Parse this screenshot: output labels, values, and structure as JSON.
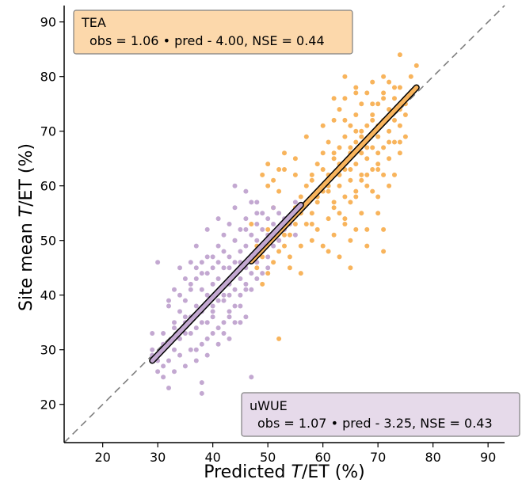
{
  "chart_data": {
    "type": "scatter",
    "xlabel": "Predicted T/ET (%)",
    "ylabel": "Site mean T/ET (%)",
    "xlabel_parts": [
      "Predicted ",
      "T",
      "/ET (%)"
    ],
    "ylabel_parts": [
      "Site mean ",
      "T",
      "/ET (%)"
    ],
    "xlim": [
      13,
      93
    ],
    "ylim": [
      13,
      93
    ],
    "x_ticks": [
      20,
      30,
      40,
      50,
      60,
      70,
      80,
      90
    ],
    "y_ticks": [
      20,
      30,
      40,
      50,
      60,
      70,
      80,
      90
    ],
    "one_to_one_line": true,
    "series": [
      {
        "name": "TEA",
        "color": "#f8b45c",
        "fit_color": "#f8b45c",
        "fit": {
          "x": [
            47,
            77
          ],
          "y": [
            46.2,
            78.0
          ]
        },
        "stats": "obs = 1.06 • pred - 4.00, NSE = 0.44",
        "points": [
          [
            47,
            53
          ],
          [
            48,
            49
          ],
          [
            49,
            47
          ],
          [
            50,
            60
          ],
          [
            50,
            52
          ],
          [
            51,
            56
          ],
          [
            51,
            61
          ],
          [
            52,
            63
          ],
          [
            52,
            50
          ],
          [
            53,
            66
          ],
          [
            53,
            51
          ],
          [
            54,
            54
          ],
          [
            54,
            45
          ],
          [
            55,
            62
          ],
          [
            55,
            56
          ],
          [
            56,
            49
          ],
          [
            56,
            58
          ],
          [
            57,
            53
          ],
          [
            57,
            60
          ],
          [
            58,
            55
          ],
          [
            58,
            62
          ],
          [
            59,
            57
          ],
          [
            59,
            64
          ],
          [
            59,
            52
          ],
          [
            60,
            49
          ],
          [
            60,
            66
          ],
          [
            60,
            59
          ],
          [
            61,
            62
          ],
          [
            61,
            54
          ],
          [
            61,
            68
          ],
          [
            62,
            57
          ],
          [
            62,
            65
          ],
          [
            62,
            72
          ],
          [
            62,
            51
          ],
          [
            63,
            60
          ],
          [
            63,
            67
          ],
          [
            63,
            55
          ],
          [
            63,
            74
          ],
          [
            64,
            63
          ],
          [
            64,
            58
          ],
          [
            64,
            69
          ],
          [
            64,
            53
          ],
          [
            64,
            76
          ],
          [
            65,
            61
          ],
          [
            65,
            66
          ],
          [
            65,
            71
          ],
          [
            65,
            57
          ],
          [
            65,
            45
          ],
          [
            66,
            64
          ],
          [
            66,
            68
          ],
          [
            66,
            73
          ],
          [
            66,
            59
          ],
          [
            66,
            78
          ],
          [
            67,
            62
          ],
          [
            67,
            70
          ],
          [
            67,
            66
          ],
          [
            67,
            75
          ],
          [
            67,
            55
          ],
          [
            68,
            65
          ],
          [
            68,
            71
          ],
          [
            68,
            60
          ],
          [
            68,
            77
          ],
          [
            68,
            49
          ],
          [
            69,
            67
          ],
          [
            69,
            73
          ],
          [
            69,
            63
          ],
          [
            69,
            79
          ],
          [
            70,
            69
          ],
          [
            70,
            64
          ],
          [
            70,
            75
          ],
          [
            70,
            71
          ],
          [
            70,
            58
          ],
          [
            71,
            72
          ],
          [
            71,
            67
          ],
          [
            71,
            77
          ],
          [
            71,
            62
          ],
          [
            71,
            48
          ],
          [
            72,
            70
          ],
          [
            72,
            74
          ],
          [
            72,
            65
          ],
          [
            72,
            79
          ],
          [
            73,
            72
          ],
          [
            73,
            68
          ],
          [
            73,
            76
          ],
          [
            74,
            71
          ],
          [
            74,
            66
          ],
          [
            74,
            74
          ],
          [
            74,
            84
          ],
          [
            75,
            73
          ],
          [
            75,
            69
          ],
          [
            76,
            77
          ],
          [
            77,
            82
          ],
          [
            61,
            48
          ],
          [
            63,
            47
          ],
          [
            65,
            50
          ],
          [
            68,
            52
          ],
          [
            60,
            71
          ],
          [
            62,
            76
          ],
          [
            64,
            80
          ],
          [
            66,
            77
          ],
          [
            69,
            75
          ],
          [
            71,
            80
          ],
          [
            57,
            69
          ],
          [
            55,
            65
          ],
          [
            53,
            63
          ],
          [
            50,
            64
          ],
          [
            49,
            62
          ],
          [
            52,
            59
          ],
          [
            54,
            47
          ],
          [
            56,
            44
          ],
          [
            58,
            50
          ],
          [
            66,
            52
          ],
          [
            70,
            55
          ],
          [
            71,
            52
          ],
          [
            69,
            59
          ],
          [
            67,
            61
          ],
          [
            65,
            63
          ],
          [
            63,
            62
          ],
          [
            61,
            60
          ],
          [
            59,
            58
          ],
          [
            58,
            53
          ],
          [
            57,
            57
          ],
          [
            56,
            55
          ],
          [
            55,
            53
          ],
          [
            54,
            51
          ],
          [
            53,
            49
          ],
          [
            52,
            48
          ],
          [
            51,
            46
          ],
          [
            50,
            44
          ],
          [
            49,
            42
          ],
          [
            48,
            45
          ],
          [
            52,
            32
          ],
          [
            73,
            62
          ],
          [
            74,
            68
          ],
          [
            72,
            60
          ],
          [
            70,
            63
          ],
          [
            68,
            67
          ],
          [
            66,
            70
          ],
          [
            64,
            72
          ],
          [
            62,
            66
          ],
          [
            60,
            63
          ],
          [
            58,
            61
          ],
          [
            62,
            56
          ],
          [
            64,
            54
          ],
          [
            66,
            58
          ],
          [
            68,
            62
          ],
          [
            70,
            66
          ],
          [
            72,
            68
          ],
          [
            74,
            78
          ],
          [
            75,
            75
          ],
          [
            76,
            80
          ],
          [
            73,
            78
          ],
          [
            71,
            76
          ],
          [
            69,
            72
          ],
          [
            67,
            69
          ],
          [
            65,
            67
          ],
          [
            63,
            64
          ],
          [
            61,
            59
          ]
        ]
      },
      {
        "name": "uWUE",
        "color": "#c3a8d1",
        "fit_color": "#c3a8d1",
        "fit": {
          "x": [
            29,
            56
          ],
          "y": [
            28.0,
            56.5
          ]
        },
        "stats": "obs = 1.07 • pred - 3.25, NSE = 0.43",
        "points": [
          [
            29,
            33
          ],
          [
            29,
            30
          ],
          [
            30,
            28
          ],
          [
            30,
            46
          ],
          [
            31,
            25
          ],
          [
            31,
            31
          ],
          [
            32,
            23
          ],
          [
            32,
            39
          ],
          [
            33,
            26
          ],
          [
            33,
            41
          ],
          [
            33,
            35
          ],
          [
            34,
            29
          ],
          [
            34,
            37
          ],
          [
            34,
            45
          ],
          [
            35,
            27
          ],
          [
            35,
            33
          ],
          [
            35,
            39
          ],
          [
            35,
            43
          ],
          [
            36,
            30
          ],
          [
            36,
            36
          ],
          [
            36,
            41
          ],
          [
            36,
            46
          ],
          [
            37,
            28
          ],
          [
            37,
            34
          ],
          [
            37,
            38
          ],
          [
            37,
            43
          ],
          [
            37,
            49
          ],
          [
            38,
            24
          ],
          [
            38,
            22
          ],
          [
            38,
            31
          ],
          [
            38,
            37
          ],
          [
            38,
            41
          ],
          [
            38,
            46
          ],
          [
            39,
            29
          ],
          [
            39,
            35
          ],
          [
            39,
            40
          ],
          [
            39,
            44
          ],
          [
            39,
            52
          ],
          [
            40,
            33
          ],
          [
            40,
            38
          ],
          [
            40,
            42
          ],
          [
            40,
            47
          ],
          [
            40,
            36
          ],
          [
            41,
            31
          ],
          [
            41,
            39
          ],
          [
            41,
            43
          ],
          [
            41,
            49
          ],
          [
            41,
            54
          ],
          [
            42,
            35
          ],
          [
            42,
            40
          ],
          [
            42,
            45
          ],
          [
            42,
            51
          ],
          [
            42,
            33
          ],
          [
            43,
            37
          ],
          [
            43,
            42
          ],
          [
            43,
            47
          ],
          [
            43,
            53
          ],
          [
            43,
            40
          ],
          [
            44,
            35
          ],
          [
            44,
            41
          ],
          [
            44,
            46
          ],
          [
            44,
            50
          ],
          [
            44,
            56
          ],
          [
            45,
            38
          ],
          [
            45,
            43
          ],
          [
            45,
            48
          ],
          [
            45,
            52
          ],
          [
            45,
            40
          ],
          [
            46,
            36
          ],
          [
            46,
            45
          ],
          [
            46,
            49
          ],
          [
            46,
            54
          ],
          [
            46,
            42
          ],
          [
            47,
            41
          ],
          [
            47,
            47
          ],
          [
            47,
            51
          ],
          [
            47,
            57
          ],
          [
            47,
            44
          ],
          [
            48,
            46
          ],
          [
            48,
            50
          ],
          [
            48,
            53
          ],
          [
            48,
            43
          ],
          [
            49,
            48
          ],
          [
            49,
            52
          ],
          [
            49,
            55
          ],
          [
            49,
            44
          ],
          [
            50,
            47
          ],
          [
            50,
            51
          ],
          [
            50,
            54
          ],
          [
            50,
            45
          ],
          [
            51,
            49
          ],
          [
            51,
            53
          ],
          [
            51,
            56
          ],
          [
            52,
            50
          ],
          [
            52,
            55
          ],
          [
            53,
            52
          ],
          [
            53,
            54
          ],
          [
            54,
            53
          ],
          [
            55,
            51
          ],
          [
            55,
            57
          ],
          [
            44,
            60
          ],
          [
            46,
            59
          ],
          [
            48,
            57
          ],
          [
            47,
            25
          ],
          [
            43,
            32
          ],
          [
            41,
            34
          ],
          [
            39,
            32
          ],
          [
            37,
            30
          ],
          [
            35,
            36
          ],
          [
            33,
            34
          ],
          [
            31,
            33
          ],
          [
            30,
            29
          ],
          [
            32,
            28
          ],
          [
            34,
            32
          ],
          [
            36,
            33
          ],
          [
            38,
            35
          ],
          [
            40,
            37
          ],
          [
            42,
            39
          ],
          [
            44,
            38
          ],
          [
            46,
            41
          ],
          [
            48,
            48
          ],
          [
            50,
            50
          ],
          [
            52,
            52
          ],
          [
            40,
            45
          ],
          [
            38,
            44
          ],
          [
            36,
            42
          ],
          [
            34,
            40
          ],
          [
            32,
            38
          ],
          [
            42,
            48
          ],
          [
            44,
            50
          ],
          [
            46,
            52
          ],
          [
            48,
            55
          ],
          [
            43,
            45
          ],
          [
            45,
            46
          ],
          [
            41,
            46
          ],
          [
            39,
            47
          ],
          [
            37,
            45
          ],
          [
            35,
            35
          ],
          [
            33,
            30
          ],
          [
            31,
            27
          ],
          [
            29,
            29
          ],
          [
            30,
            26
          ],
          [
            45,
            35
          ],
          [
            43,
            36
          ]
        ]
      }
    ]
  }
}
